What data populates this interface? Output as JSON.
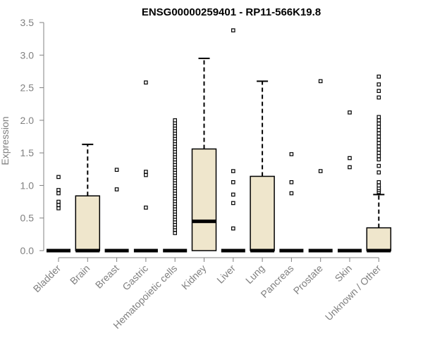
{
  "chart_data": {
    "type": "box",
    "title": "ENSG00000259401 - RP11-566K19.8",
    "xlabel": "",
    "ylabel": "Expression",
    "ylim": [
      0,
      3.5
    ],
    "yticks": [
      0.0,
      0.5,
      1.0,
      1.5,
      2.0,
      2.5,
      3.0,
      3.5
    ],
    "ytick_labels": [
      "0.0",
      "0.5",
      "1.0",
      "1.5",
      "2.0",
      "2.5",
      "3.0",
      "3.5"
    ],
    "grid": false,
    "colors": {
      "box_fill": "#EFE6CC",
      "stroke": "#000000",
      "axis_text": "#808080"
    },
    "categories": [
      "Bladder",
      "Brain",
      "Breast",
      "Gastric",
      "Hematopoietic cells",
      "Kidney",
      "Liver",
      "Lung",
      "Pancreas",
      "Prostate",
      "Skin",
      "Unknown / Other"
    ],
    "boxes": [
      {
        "category": "Bladder",
        "q1": 0,
        "median": 0,
        "q3": 0,
        "whisker_low": 0,
        "whisker_high": 0,
        "outliers": [
          0.65,
          0.7,
          0.75,
          0.88,
          0.93,
          1.13
        ]
      },
      {
        "category": "Brain",
        "q1": 0,
        "median": 0,
        "q3": 0.84,
        "whisker_low": 0,
        "whisker_high": 1.63,
        "outliers": []
      },
      {
        "category": "Breast",
        "q1": 0,
        "median": 0,
        "q3": 0,
        "whisker_low": 0,
        "whisker_high": 0,
        "outliers": [
          0.94,
          1.24
        ]
      },
      {
        "category": "Gastric",
        "q1": 0,
        "median": 0,
        "q3": 0,
        "whisker_low": 0,
        "whisker_high": 0,
        "outliers": [
          0.66,
          1.16,
          1.21,
          2.58
        ]
      },
      {
        "category": "Hematopoietic cells",
        "q1": 0,
        "median": 0,
        "q3": 0,
        "whisker_low": 0,
        "whisker_high": 0,
        "outliers": [
          0.27,
          0.32,
          0.36,
          0.4,
          0.44,
          0.48,
          0.52,
          0.56,
          0.6,
          0.64,
          0.68,
          0.72,
          0.76,
          0.8,
          0.84,
          0.88,
          0.92,
          0.96,
          1.0,
          1.04,
          1.08,
          1.12,
          1.16,
          1.2,
          1.24,
          1.28,
          1.32,
          1.36,
          1.4,
          1.44,
          1.48,
          1.52,
          1.56,
          1.6,
          1.64,
          1.68,
          1.72,
          1.76,
          1.8,
          1.84,
          1.88,
          1.92,
          1.96,
          2.0
        ]
      },
      {
        "category": "Kidney",
        "q1": 0,
        "median": 0.45,
        "q3": 1.56,
        "whisker_low": 0,
        "whisker_high": 2.95,
        "outliers": []
      },
      {
        "category": "Liver",
        "q1": 0,
        "median": 0,
        "q3": 0,
        "whisker_low": 0,
        "whisker_high": 0,
        "outliers": [
          0.34,
          0.73,
          0.86,
          1.05,
          1.22,
          3.38
        ]
      },
      {
        "category": "Lung",
        "q1": 0,
        "median": 0,
        "q3": 1.14,
        "whisker_low": 0,
        "whisker_high": 2.6,
        "outliers": []
      },
      {
        "category": "Pancreas",
        "q1": 0,
        "median": 0,
        "q3": 0,
        "whisker_low": 0,
        "whisker_high": 0,
        "outliers": [
          0.88,
          1.05,
          1.48
        ]
      },
      {
        "category": "Prostate",
        "q1": 0,
        "median": 0,
        "q3": 0,
        "whisker_low": 0,
        "whisker_high": 0,
        "outliers": [
          1.22,
          2.6
        ]
      },
      {
        "category": "Skin",
        "q1": 0,
        "median": 0,
        "q3": 0,
        "whisker_low": 0,
        "whisker_high": 0,
        "outliers": [
          1.28,
          1.42,
          2.12
        ]
      },
      {
        "category": "Unknown / Other",
        "q1": 0,
        "median": 0,
        "q3": 0.35,
        "whisker_low": 0,
        "whisker_high": 0.86,
        "outliers": [
          0.9,
          0.93,
          0.96,
          1.0,
          1.05,
          1.2,
          1.3,
          1.4,
          1.45,
          1.5,
          1.55,
          1.6,
          1.65,
          1.7,
          1.75,
          1.8,
          1.85,
          1.9,
          1.95,
          2.0,
          2.05,
          2.35,
          2.45,
          2.55,
          2.67
        ]
      }
    ]
  }
}
